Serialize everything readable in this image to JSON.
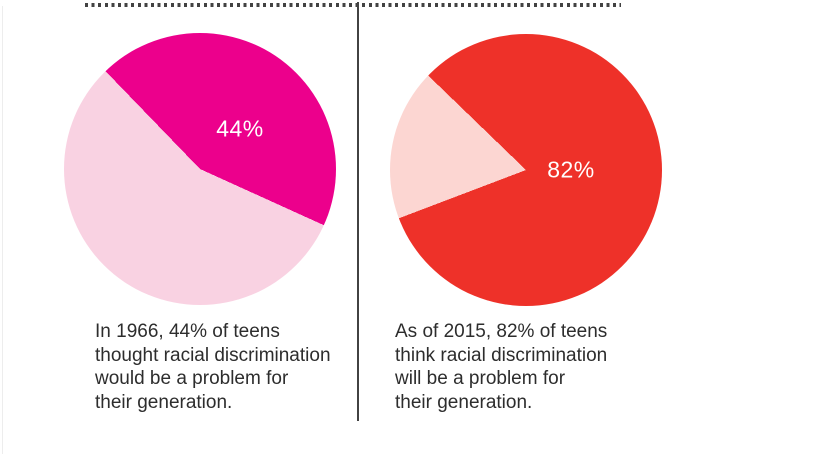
{
  "layout_colors": {
    "background": "#ffffff",
    "rule_and_divider": "#424242",
    "caption_text": "#2d2d2d",
    "percent_label_text": "#ffffff"
  },
  "chart_data": [
    {
      "type": "pie",
      "title": "",
      "start_angle_deg": -44,
      "legend_position": "none",
      "slices": [
        {
          "label": "44%",
          "value": 44,
          "color": "#EC008C"
        },
        {
          "label": "",
          "value": 56,
          "color": "#F9D2E2"
        }
      ],
      "caption": "In 1966, 44% of teens\nthought racial discrimination\nwould be a problem for\ntheir generation."
    },
    {
      "type": "pie",
      "title": "",
      "start_angle_deg": -46,
      "legend_position": "none",
      "slices": [
        {
          "label": "82%",
          "value": 82,
          "color": "#EE3129"
        },
        {
          "label": "",
          "value": 18,
          "color": "#FCD6D2"
        }
      ],
      "caption": "As of 2015, 82% of teens\nthink racial discrimination\nwill be a problem for\ntheir generation."
    }
  ]
}
